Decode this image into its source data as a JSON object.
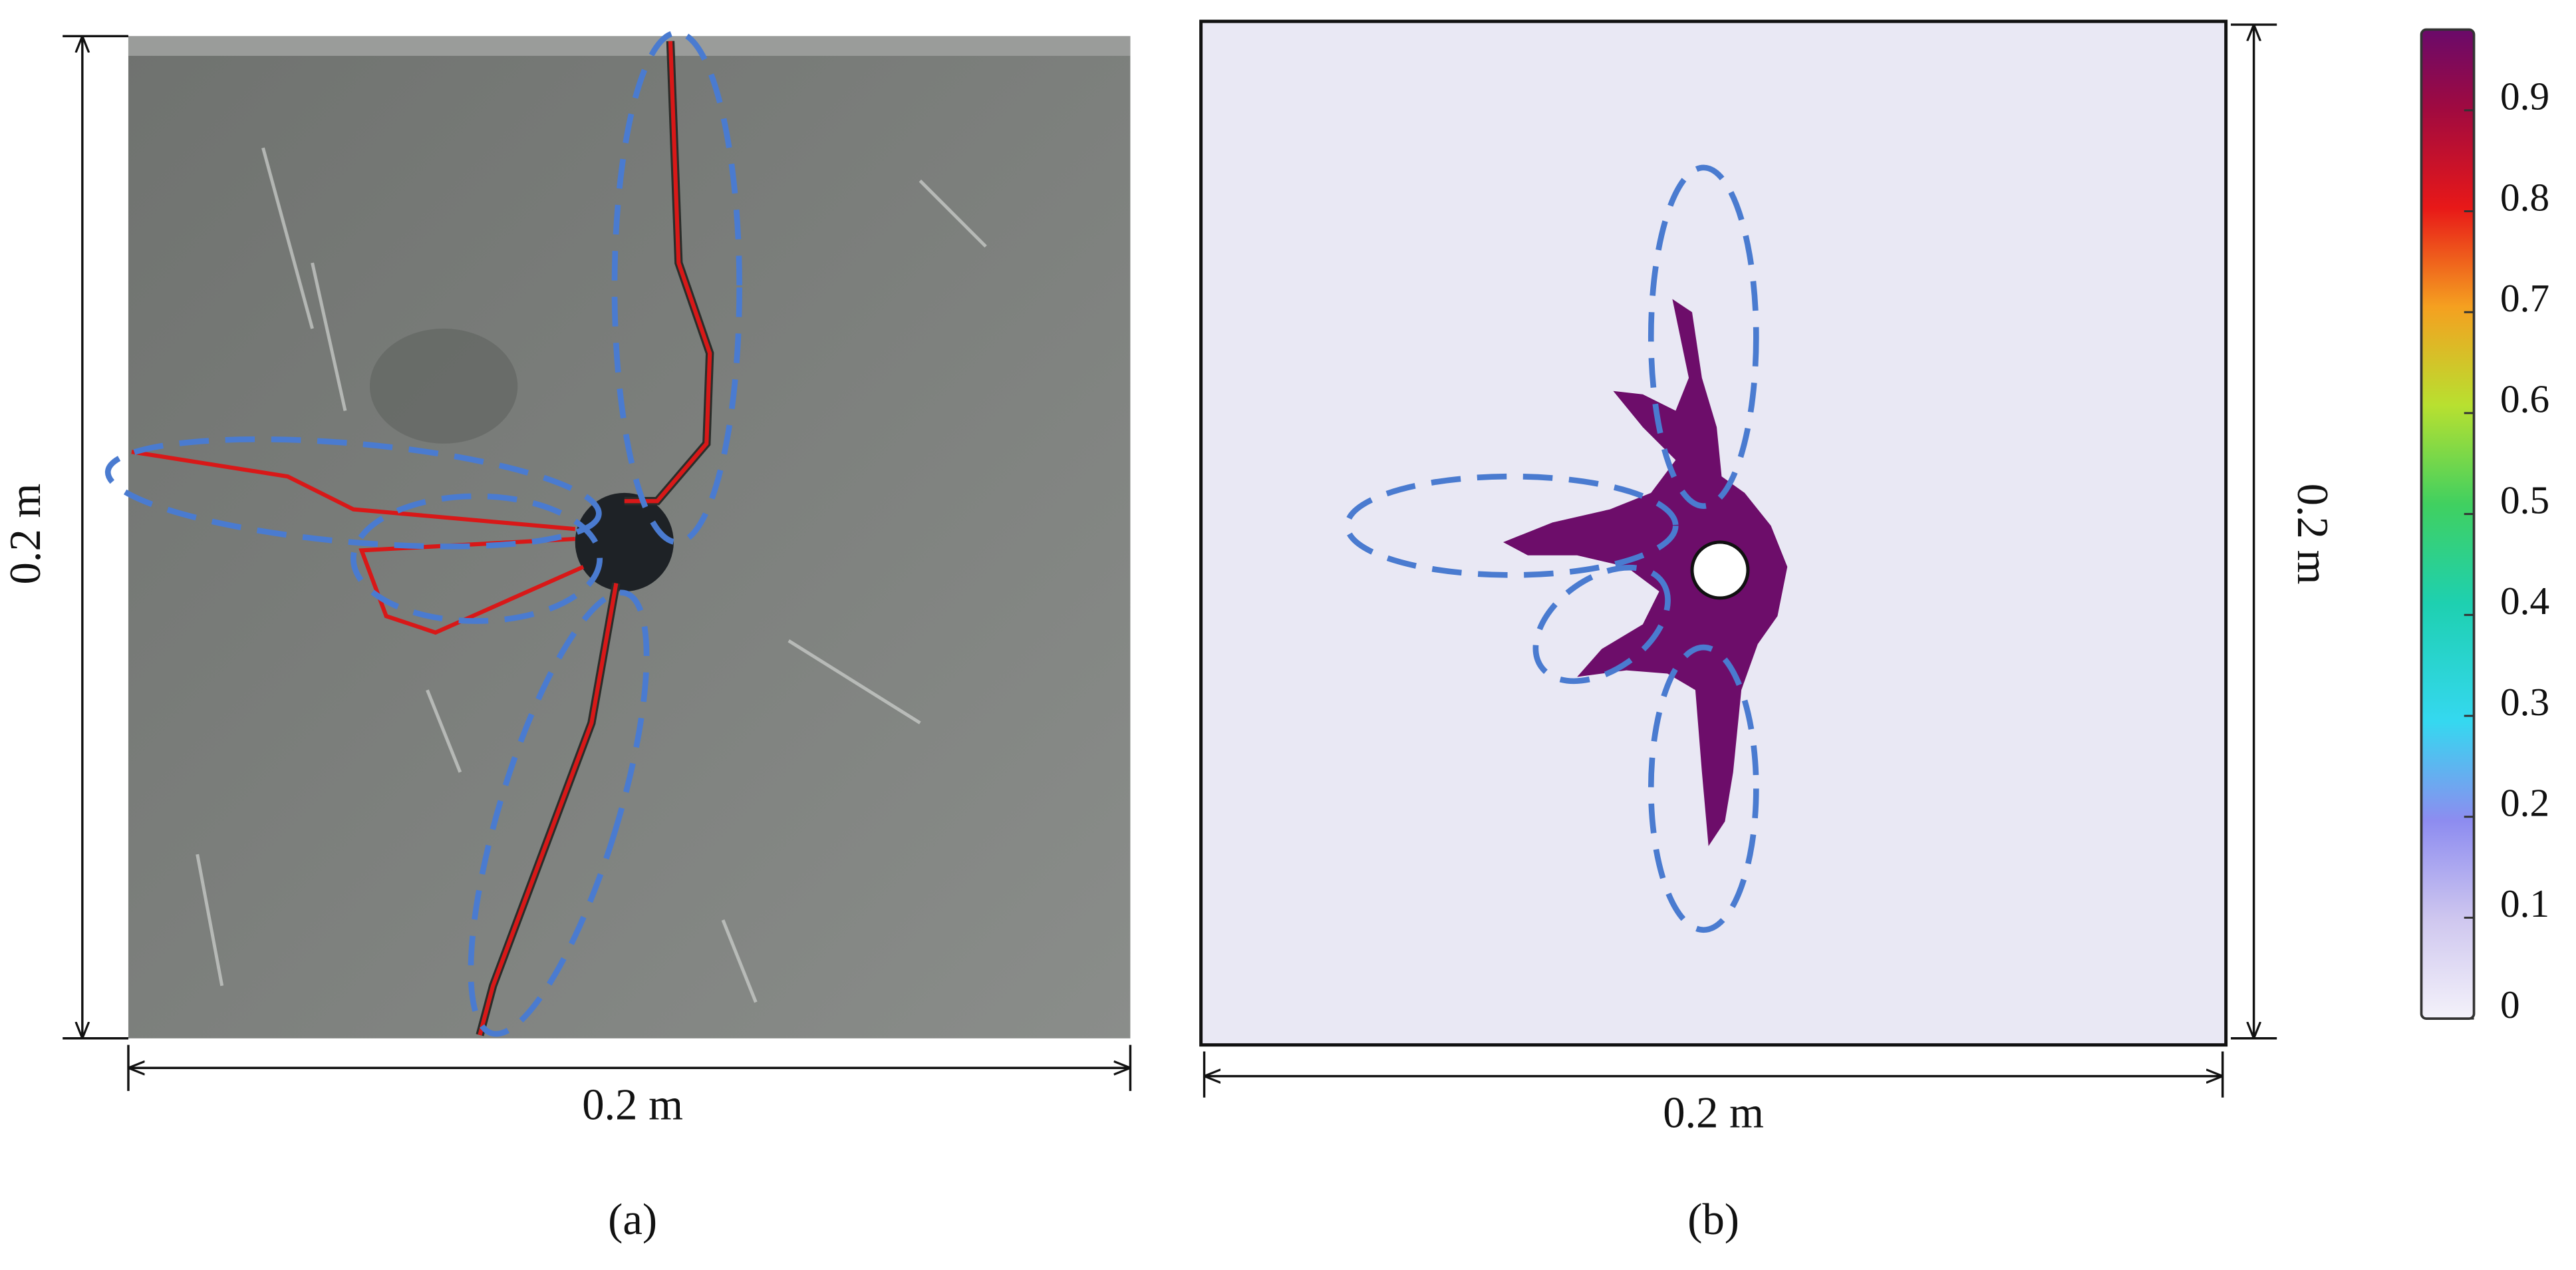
{
  "panel_a": {
    "width_label": "0.2 m",
    "height_label": "0.2 m",
    "caption": "(a)"
  },
  "panel_b": {
    "width_label": "0.2 m",
    "height_label": "0.2 m",
    "caption": "(b)"
  },
  "colorbar": {
    "lim": [
      0,
      0.98
    ],
    "ticks": [
      0,
      0.1,
      0.2,
      0.3,
      0.4,
      0.5,
      0.6,
      0.7,
      0.8,
      0.9
    ]
  }
}
